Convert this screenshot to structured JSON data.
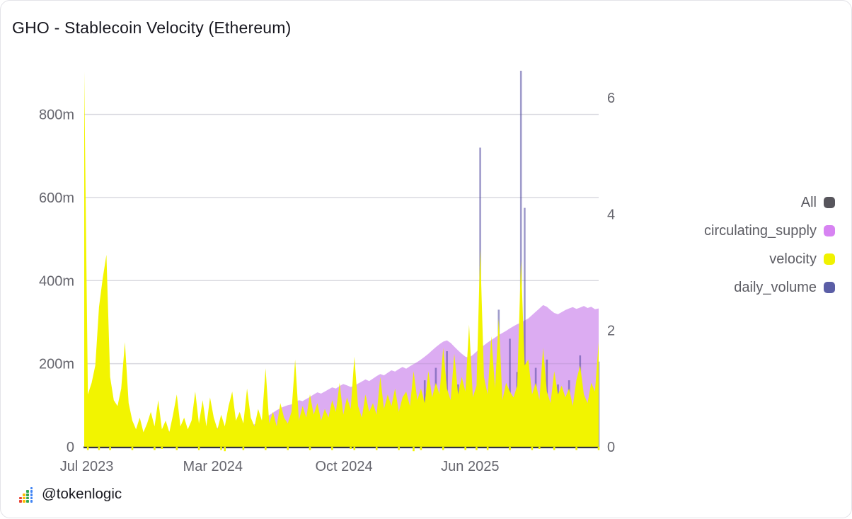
{
  "window": {
    "title": "GHO - Stablecoin Velocity (Ethereum)"
  },
  "footer": {
    "handle": "@tokenlogic",
    "logo_colors": [
      "#ea4335",
      "#fbbc04",
      "#34a853",
      "#4285f4"
    ]
  },
  "legend": {
    "items": [
      {
        "label": "All",
        "color": "#57555c"
      },
      {
        "label": "circulating_supply",
        "color": "#d783f2"
      },
      {
        "label": "velocity",
        "color": "#f0f200"
      },
      {
        "label": "daily_volume",
        "color": "#5b5ea6"
      }
    ]
  },
  "chart_data": {
    "type": "area",
    "title": "GHO - Stablecoin Velocity (Ethereum)",
    "grid": "horizontal",
    "legend_position": "right",
    "x_axis": {
      "ticks": [
        {
          "label": "Jul 2023",
          "f": 0.005
        },
        {
          "label": "Mar 2024",
          "f": 0.25
        },
        {
          "label": "Oct 2024",
          "f": 0.505
        },
        {
          "label": "Jun 2025",
          "f": 0.75
        }
      ],
      "range": [
        "Jul 2023",
        "Nov 2025"
      ]
    },
    "left_axis": {
      "unit": "millions",
      "max": 910,
      "ticks": [
        {
          "label": "0",
          "value": 0
        },
        {
          "label": "200m",
          "value": 200
        },
        {
          "label": "400m",
          "value": 400
        },
        {
          "label": "600m",
          "value": 600
        },
        {
          "label": "800m",
          "value": 800
        }
      ]
    },
    "right_axis": {
      "max": 6.5,
      "ticks": [
        {
          "label": "0",
          "value": 0
        },
        {
          "label": "2",
          "value": 2
        },
        {
          "label": "4",
          "value": 4
        },
        {
          "label": "6",
          "value": 6
        }
      ]
    },
    "series": [
      {
        "name": "circulating_supply",
        "axis": "left",
        "style": "area",
        "color": "#dcacf2",
        "values": [
          2,
          4,
          7,
          10,
          14,
          17,
          20,
          22,
          24,
          26,
          27,
          28,
          30,
          31,
          32,
          31,
          32,
          33,
          34,
          35,
          35,
          36,
          36,
          37,
          38,
          38,
          37,
          38,
          39,
          40,
          40,
          41,
          42,
          43,
          44,
          46,
          46,
          46,
          47,
          47,
          48,
          48,
          49,
          50,
          51,
          52,
          54,
          58,
          64,
          70,
          76,
          82,
          88,
          93,
          97,
          100,
          102,
          107,
          112,
          110,
          115,
          120,
          126,
          131,
          128,
          133,
          138,
          143,
          140,
          146,
          151,
          148,
          144,
          147,
          152,
          157,
          162,
          158,
          164,
          170,
          175,
          172,
          178,
          184,
          181,
          187,
          192,
          188,
          194,
          199,
          204,
          210,
          217,
          224,
          232,
          240,
          247,
          253,
          256,
          250,
          241,
          232,
          224,
          217,
          214,
          221,
          229,
          237,
          244,
          251,
          257,
          263,
          269,
          274,
          279,
          285,
          290,
          295,
          299,
          304,
          309,
          317,
          325,
          333,
          341,
          337,
          329,
          322,
          319,
          324,
          329,
          333,
          336,
          332,
          335,
          339,
          334,
          337,
          331,
          333
        ]
      },
      {
        "name": "daily_volume",
        "axis": "left",
        "style": "bars",
        "color": "rgba(80,72,160,0.55)",
        "values": [
          1,
          3,
          6,
          4,
          8,
          12,
          7,
          9,
          14,
          10,
          8,
          12,
          9,
          7,
          11,
          8,
          6,
          9,
          12,
          8,
          6,
          8,
          10,
          7,
          9,
          6,
          8,
          11,
          7,
          9,
          8,
          10,
          7,
          12,
          9,
          8,
          10,
          14,
          11,
          16,
          12,
          18,
          14,
          20,
          15,
          12,
          18,
          14,
          16,
          22,
          17,
          14,
          19,
          15,
          21,
          16,
          18,
          25,
          20,
          90,
          24,
          19,
          28,
          22,
          17,
          26,
          21,
          30,
          24,
          19,
          32,
          26,
          22,
          35,
          28,
          24,
          38,
          30,
          26,
          42,
          32,
          28,
          45,
          36,
          30,
          48,
          38,
          105,
          44,
          36,
          52,
          44,
          160,
          56,
          48,
          190,
          62,
          54,
          230,
          66,
          58,
          150,
          64,
          56,
          210,
          68,
          60,
          720,
          72,
          64,
          170,
          76,
          330,
          80,
          68,
          260,
          72,
          180,
          905,
          575,
          84,
          70,
          190,
          76,
          66,
          210,
          80,
          72,
          150,
          78,
          70,
          160,
          74,
          68,
          220,
          76,
          64,
          140,
          72,
          205
        ]
      },
      {
        "name": "velocity",
        "axis": "right",
        "style": "area",
        "color": "#f2f400",
        "values": [
          6.45,
          0.9,
          1.1,
          1.4,
          2.4,
          2.9,
          3.3,
          1.2,
          0.8,
          0.7,
          1.0,
          1.8,
          0.75,
          0.45,
          0.3,
          0.5,
          0.25,
          0.4,
          0.6,
          0.35,
          0.8,
          0.3,
          0.45,
          0.25,
          0.55,
          0.9,
          0.35,
          0.5,
          0.3,
          0.45,
          0.95,
          0.4,
          0.8,
          0.35,
          0.85,
          0.5,
          0.3,
          0.55,
          0.35,
          0.7,
          0.95,
          0.45,
          0.6,
          0.4,
          1.0,
          0.5,
          0.35,
          0.65,
          0.45,
          1.35,
          0.4,
          0.6,
          0.35,
          0.75,
          0.5,
          0.4,
          0.6,
          1.5,
          0.45,
          0.7,
          0.5,
          0.9,
          0.55,
          0.75,
          0.45,
          0.65,
          0.5,
          0.8,
          0.6,
          1.1,
          0.55,
          0.85,
          0.65,
          1.55,
          0.7,
          0.5,
          0.9,
          0.6,
          0.75,
          0.55,
          1.2,
          0.65,
          0.9,
          0.7,
          1.0,
          0.6,
          0.85,
          0.95,
          0.7,
          1.3,
          0.8,
          1.0,
          0.75,
          1.3,
          0.85,
          1.1,
          0.9,
          1.7,
          1.0,
          0.8,
          1.6,
          0.9,
          1.2,
          0.95,
          2.1,
          0.85,
          1.05,
          3.4,
          1.2,
          0.9,
          1.9,
          1.0,
          2.2,
          0.8,
          1.1,
          0.95,
          0.85,
          1.05,
          3.2,
          1.4,
          1.5,
          0.9,
          1.1,
          0.8,
          1.7,
          0.95,
          0.75,
          1.3,
          0.9,
          1.05,
          0.85,
          1.0,
          0.7,
          1.15,
          1.4,
          0.9,
          0.75,
          1.1,
          0.95,
          1.8
        ]
      }
    ],
    "colors": {
      "gridline": "#ececef",
      "gridline_overlay": "rgba(100,100,125,0.14)",
      "axis_line": "#32323e",
      "tick_label": "#66666e"
    }
  }
}
